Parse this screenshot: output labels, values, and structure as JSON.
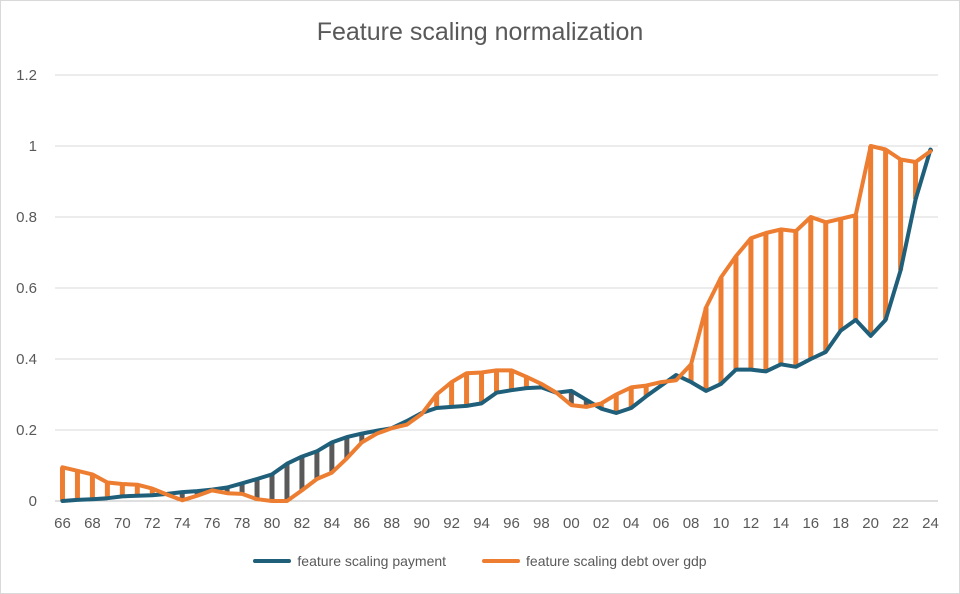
{
  "chart_data": {
    "type": "line",
    "title": "Feature scaling normalization",
    "xlabel": "",
    "ylabel": "",
    "ylim": [
      0,
      1.2
    ],
    "yticks": [
      "0",
      "0.2",
      "0.4",
      "0.6",
      "0.8",
      "1",
      "1.2"
    ],
    "grid": true,
    "legend_position": "bottom",
    "x": [
      "66",
      "67",
      "68",
      "69",
      "70",
      "71",
      "72",
      "73",
      "74",
      "75",
      "76",
      "77",
      "78",
      "79",
      "80",
      "81",
      "82",
      "83",
      "84",
      "85",
      "86",
      "87",
      "88",
      "89",
      "90",
      "91",
      "92",
      "93",
      "94",
      "95",
      "96",
      "97",
      "98",
      "99",
      "00",
      "01",
      "02",
      "03",
      "04",
      "05",
      "06",
      "07",
      "08",
      "09",
      "10",
      "11",
      "12",
      "13",
      "14",
      "15",
      "16",
      "17",
      "18",
      "19",
      "20",
      "21",
      "22",
      "23",
      "24"
    ],
    "xticks_shown": [
      "66",
      "68",
      "70",
      "72",
      "74",
      "76",
      "78",
      "80",
      "82",
      "84",
      "86",
      "88",
      "90",
      "92",
      "94",
      "96",
      "98",
      "00",
      "02",
      "04",
      "06",
      "08",
      "10",
      "12",
      "14",
      "16",
      "18",
      "20",
      "22",
      "24"
    ],
    "series": [
      {
        "name": "feature scaling payment",
        "color": "#1f5f7a",
        "values": [
          0.0,
          0.003,
          0.005,
          0.008,
          0.013,
          0.015,
          0.016,
          0.02,
          0.025,
          0.028,
          0.032,
          0.038,
          0.05,
          0.062,
          0.075,
          0.105,
          0.125,
          0.14,
          0.165,
          0.18,
          0.19,
          0.198,
          0.205,
          0.225,
          0.248,
          0.262,
          0.265,
          0.268,
          0.275,
          0.305,
          0.312,
          0.318,
          0.32,
          0.305,
          0.31,
          0.285,
          0.26,
          0.248,
          0.262,
          0.295,
          0.325,
          0.355,
          0.335,
          0.31,
          0.33,
          0.37,
          0.37,
          0.365,
          0.385,
          0.378,
          0.4,
          0.42,
          0.48,
          0.51,
          0.465,
          0.51,
          0.65,
          0.85,
          0.99
        ]
      },
      {
        "name": "feature scaling debt over gdp",
        "color": "#ed7d31",
        "values": [
          0.095,
          0.085,
          0.075,
          0.052,
          0.048,
          0.046,
          0.035,
          0.018,
          0.002,
          0.015,
          0.03,
          0.022,
          0.02,
          0.005,
          0.0,
          0.0,
          0.03,
          0.062,
          0.08,
          0.12,
          0.165,
          0.19,
          0.205,
          0.215,
          0.245,
          0.3,
          0.335,
          0.36,
          0.362,
          0.368,
          0.368,
          0.35,
          0.33,
          0.305,
          0.27,
          0.265,
          0.275,
          0.3,
          0.32,
          0.325,
          0.335,
          0.34,
          0.385,
          0.545,
          0.63,
          0.69,
          0.74,
          0.755,
          0.765,
          0.76,
          0.8,
          0.785,
          0.795,
          0.805,
          1.0,
          0.99,
          0.962,
          0.955,
          0.985
        ]
      }
    ],
    "drop_line_color": "#595959"
  }
}
